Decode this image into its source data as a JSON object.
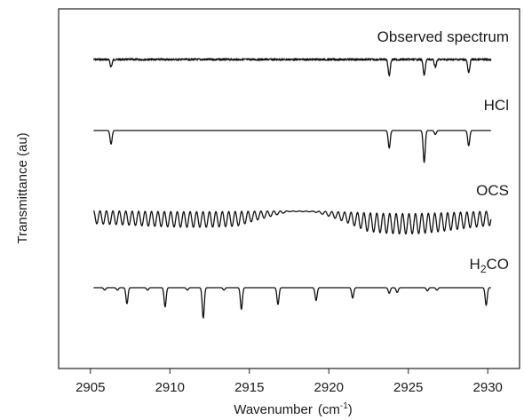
{
  "chart_data": {
    "type": "line",
    "xlabel": "Wavenumber",
    "xlabel_unit": "(cm",
    "xlabel_unit_sup": "-1",
    "xlabel_unit_end": ")",
    "ylabel": "Transmittance (au)",
    "xlim": [
      2903,
      2932
    ],
    "xticks": [
      2905,
      2910,
      2915,
      2920,
      2925,
      2930
    ],
    "x_range_plotted": [
      2905.2,
      2930.2
    ],
    "grid": false,
    "y_ticks_shown": false,
    "series": [
      {
        "name": "Observed spectrum",
        "stack_position": 1,
        "absorption_lines": [
          {
            "x": 2906.3,
            "depth": 0.45
          },
          {
            "x": 2923.8,
            "depth": 1.0
          },
          {
            "x": 2926.0,
            "depth": 1.0
          },
          {
            "x": 2926.7,
            "depth": 0.45
          },
          {
            "x": 2928.8,
            "depth": 0.85
          }
        ],
        "noise": true
      },
      {
        "name": "HCl",
        "stack_position": 2,
        "absorption_lines": [
          {
            "x": 2906.3,
            "depth": 0.85
          },
          {
            "x": 2923.8,
            "depth": 1.1
          },
          {
            "x": 2926.0,
            "depth": 2.0
          },
          {
            "x": 2926.7,
            "depth": 0.25
          },
          {
            "x": 2928.8,
            "depth": 0.95
          }
        ],
        "noise": false
      },
      {
        "name": "OCS",
        "stack_position": 3,
        "band_spacing": 0.405,
        "band_envelope_gap_center": 2918.3,
        "noise": false
      },
      {
        "name": "H2CO",
        "name_main": "H",
        "name_sub": "2",
        "name_end": "CO",
        "stack_position": 4,
        "absorption_lines": [
          {
            "x": 2905.9,
            "depth": 0.15
          },
          {
            "x": 2906.7,
            "depth": 0.15
          },
          {
            "x": 2907.3,
            "depth": 1.0
          },
          {
            "x": 2908.6,
            "depth": 0.15
          },
          {
            "x": 2909.7,
            "depth": 1.2
          },
          {
            "x": 2911.1,
            "depth": 0.15
          },
          {
            "x": 2912.1,
            "depth": 1.9
          },
          {
            "x": 2913.4,
            "depth": 0.15
          },
          {
            "x": 2914.5,
            "depth": 1.35
          },
          {
            "x": 2916.8,
            "depth": 1.05
          },
          {
            "x": 2919.2,
            "depth": 0.8
          },
          {
            "x": 2921.5,
            "depth": 0.65
          },
          {
            "x": 2923.8,
            "depth": 0.35
          },
          {
            "x": 2924.3,
            "depth": 0.3
          },
          {
            "x": 2926.2,
            "depth": 0.2
          },
          {
            "x": 2926.8,
            "depth": 0.15
          },
          {
            "x": 2929.9,
            "depth": 1.1
          }
        ],
        "noise": false
      }
    ]
  }
}
